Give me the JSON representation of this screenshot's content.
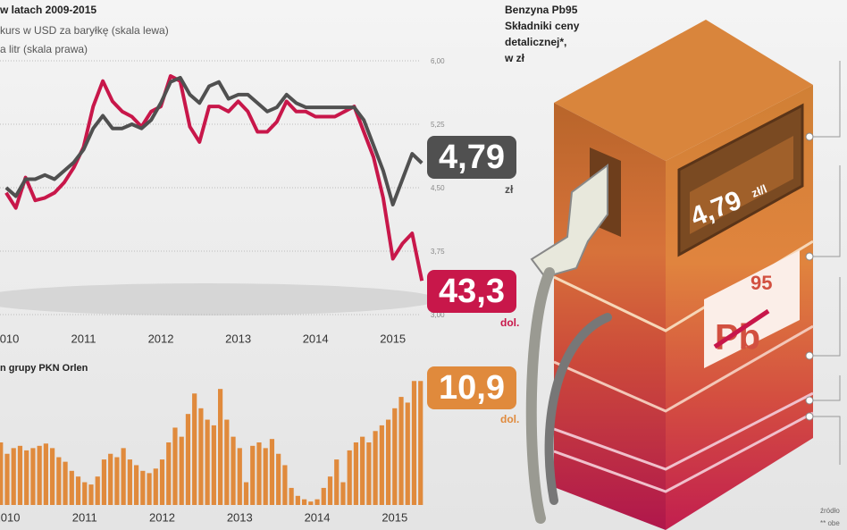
{
  "chart_data": [
    {
      "type": "line",
      "title": "w latach 2009-2015",
      "subtitle": "kurs w USD za baryłkę (skala lewa)",
      "subtitle2": "a litr (skala prawa)",
      "x": [
        2010,
        2010.125,
        2010.25,
        2010.375,
        2010.5,
        2010.625,
        2010.75,
        2010.875,
        2011,
        2011.125,
        2011.25,
        2011.375,
        2011.5,
        2011.625,
        2011.75,
        2011.875,
        2012,
        2012.125,
        2012.25,
        2012.375,
        2012.5,
        2012.625,
        2012.75,
        2012.875,
        2013,
        2013.125,
        2013.25,
        2013.375,
        2013.5,
        2013.625,
        2013.75,
        2013.875,
        2014,
        2014.125,
        2014.25,
        2014.375,
        2014.5,
        2014.625,
        2014.75,
        2014.875,
        2015,
        2015.125,
        2015.25,
        2015.375
      ],
      "xlim": [
        2009.92,
        2015.35
      ],
      "xticks": [
        2010,
        2011,
        2012,
        2013,
        2014,
        2015
      ],
      "ylim": [
        30,
        130
      ],
      "y2lim": [
        3,
        6
      ],
      "y2ticks": [
        {
          "value": 6,
          "label": "6,00"
        },
        {
          "value": 5.25,
          "label": "5,25"
        },
        {
          "value": 4.5,
          "label": "4,50"
        },
        {
          "value": 3.75,
          "label": "3,75"
        },
        {
          "value": 3,
          "label": "3,00"
        }
      ],
      "grid": true,
      "series": [
        {
          "name": "kurs w USD za baryłkę",
          "color": "#c8174a",
          "unit": "dol.",
          "values": [
            78,
            72,
            84,
            75,
            76,
            78,
            82,
            88,
            96,
            112,
            122,
            114,
            110,
            108,
            104,
            110,
            112,
            124,
            122,
            104,
            98,
            112,
            112,
            110,
            114,
            110,
            102,
            102,
            106,
            114,
            110,
            110,
            108,
            108,
            108,
            110,
            112,
            102,
            92,
            76,
            52,
            58,
            62,
            43.3
          ],
          "value_labels": [
            null,
            null,
            null,
            null,
            null,
            null,
            null,
            null,
            null,
            null,
            null,
            null,
            null,
            null,
            null,
            null,
            null,
            null,
            null,
            null,
            null,
            null,
            null,
            null,
            null,
            null,
            null,
            null,
            null,
            null,
            null,
            null,
            null,
            null,
            null,
            null,
            null,
            null,
            null,
            null,
            null,
            null,
            null,
            "43,3"
          ]
        },
        {
          "name": "litr",
          "color": "#505050",
          "axis": "y2",
          "unit": "zł",
          "values": [
            4.5,
            4.4,
            4.6,
            4.6,
            4.65,
            4.6,
            4.7,
            4.8,
            4.95,
            5.2,
            5.35,
            5.2,
            5.2,
            5.25,
            5.2,
            5.3,
            5.5,
            5.75,
            5.8,
            5.6,
            5.5,
            5.7,
            5.75,
            5.55,
            5.6,
            5.6,
            5.5,
            5.4,
            5.45,
            5.6,
            5.5,
            5.45,
            5.45,
            5.45,
            5.45,
            5.45,
            5.45,
            5.3,
            5.0,
            4.7,
            4.3,
            4.6,
            4.9,
            4.79
          ],
          "value_labels": [
            null,
            null,
            null,
            null,
            null,
            null,
            null,
            null,
            null,
            null,
            null,
            null,
            null,
            null,
            null,
            null,
            null,
            null,
            null,
            null,
            null,
            null,
            null,
            null,
            null,
            null,
            null,
            null,
            null,
            null,
            null,
            null,
            null,
            null,
            null,
            null,
            null,
            null,
            null,
            null,
            null,
            null,
            null,
            "4,79"
          ]
        }
      ]
    },
    {
      "type": "bar",
      "title": "n grupy PKN Orlen",
      "color": "#e08a3c",
      "unit": "dol.",
      "ylim": [
        0,
        11
      ],
      "categories": [
        null,
        "2010",
        null,
        null,
        null,
        null,
        null,
        null,
        null,
        null,
        null,
        null,
        null,
        "2011",
        null,
        null,
        null,
        null,
        null,
        null,
        null,
        null,
        null,
        null,
        null,
        "2012",
        null,
        null,
        null,
        null,
        null,
        null,
        null,
        null,
        null,
        null,
        null,
        "2013",
        null,
        null,
        null,
        null,
        null,
        null,
        null,
        null,
        null,
        null,
        null,
        "2014",
        null,
        null,
        null,
        null,
        null,
        null,
        null,
        null,
        null,
        null,
        null,
        "2015",
        null,
        null,
        null,
        null
      ],
      "values": [
        5.5,
        4.5,
        5.0,
        5.2,
        4.8,
        5.0,
        5.2,
        5.4,
        5.0,
        4.2,
        3.8,
        3.0,
        2.5,
        2.0,
        1.8,
        2.5,
        4.0,
        4.5,
        4.2,
        5.0,
        4.0,
        3.5,
        3.0,
        2.8,
        3.2,
        4.0,
        5.5,
        6.8,
        6.0,
        8.0,
        9.8,
        8.5,
        7.5,
        7.0,
        10.2,
        7.5,
        6.0,
        5.0,
        2.0,
        5.2,
        5.5,
        5.0,
        5.8,
        4.5,
        3.5,
        1.5,
        0.8,
        0.5,
        0.3,
        0.5,
        1.5,
        2.5,
        4.0,
        2.0,
        4.8,
        5.5,
        6.0,
        5.5,
        6.5,
        7.0,
        7.5,
        8.5,
        9.5,
        9.0,
        10.9,
        10.9
      ],
      "value_labels": [
        null,
        null,
        null,
        null,
        null,
        null,
        null,
        null,
        null,
        null,
        null,
        null,
        null,
        null,
        null,
        null,
        null,
        null,
        null,
        null,
        null,
        null,
        null,
        null,
        null,
        null,
        null,
        null,
        null,
        null,
        null,
        null,
        null,
        null,
        null,
        null,
        null,
        null,
        null,
        null,
        null,
        null,
        null,
        null,
        null,
        null,
        null,
        null,
        null,
        null,
        null,
        null,
        null,
        null,
        null,
        null,
        null,
        null,
        null,
        null,
        null,
        null,
        null,
        null,
        null,
        "10,9"
      ]
    }
  ],
  "pump": {
    "heading": [
      "Benzyna Pb95",
      "Składniki ceny",
      "detalicznej*,",
      "w zł"
    ],
    "display": "4,79",
    "display_unit": "zł/l",
    "symbol": "Pb",
    "octane": "95",
    "source": "źródło",
    "note": "** obe"
  }
}
